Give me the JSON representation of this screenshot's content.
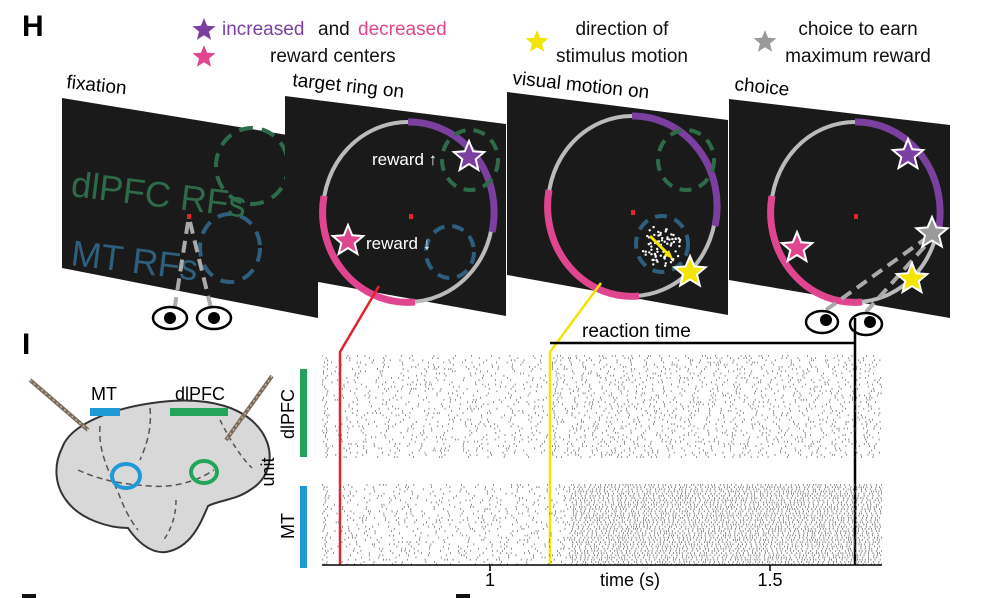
{
  "panels": {
    "h_letter": "H",
    "i_letter": "I"
  },
  "legend": {
    "increased": "increased",
    "and": "and",
    "decreased": "decreased",
    "reward_centers": "reward centers",
    "direction_line1": "direction of",
    "direction_line2": "stimulus motion",
    "choice_line1": "choice to earn",
    "choice_line2": "maximum reward"
  },
  "screens": [
    {
      "title": "fixation",
      "rf1": "dlPFC RFs",
      "rf2": "MT RFs"
    },
    {
      "title": "target ring on",
      "reward_up": "reward ↑",
      "reward_down": "reward ↓"
    },
    {
      "title": "visual motion on"
    },
    {
      "title": "choice"
    }
  ],
  "brain": {
    "mt_label": "MT",
    "dlpfc_label": "dlPFC"
  },
  "raster": {
    "reaction_time_label": "reaction time",
    "y_label": "unit",
    "group_top": "dlPFC",
    "group_bottom": "MT",
    "x_label": "time (s)",
    "x_ticks": [
      "1",
      "1.5"
    ]
  },
  "colors": {
    "increased": "#7b3fa0",
    "decreased": "#e0468f",
    "direction": "#f2e600",
    "choice": "#9a9a9a",
    "dlpfc": "#22a55a",
    "mt": "#1f9ad6",
    "target_line": "#e0262b",
    "motion_line": "#f2e600"
  }
}
